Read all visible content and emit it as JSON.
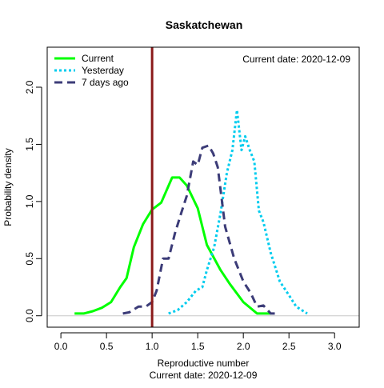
{
  "chart_data": {
    "type": "line",
    "title": "Saskatchewan",
    "xlabel": "Reproductive number",
    "xlabel_sub": "Current date:  2020-12-09",
    "ylabel": "Probability density",
    "annotation": "Current date:  2020-12-09",
    "xlim": [
      -0.15,
      3.27
    ],
    "ylim": [
      -0.1,
      2.35
    ],
    "xticks": [
      "0.0",
      "0.5",
      "1.0",
      "1.5",
      "2.0",
      "2.5",
      "3.0"
    ],
    "yticks": [
      "0.0",
      "0.5",
      "1.0",
      "1.5",
      "2.0"
    ],
    "reference_line_x": 1.0,
    "reference_line_color": "#8b1a1a",
    "baseline_color": "#c8c8c8",
    "legend_position": "top-left",
    "series": [
      {
        "name": "Current",
        "color": "#00ff00",
        "dash": "solid",
        "points": [
          [
            0.15,
            0.02
          ],
          [
            0.25,
            0.02
          ],
          [
            0.35,
            0.04
          ],
          [
            0.45,
            0.07
          ],
          [
            0.55,
            0.12
          ],
          [
            0.65,
            0.25
          ],
          [
            0.72,
            0.33
          ],
          [
            0.8,
            0.6
          ],
          [
            0.9,
            0.8
          ],
          [
            1.0,
            0.93
          ],
          [
            1.1,
            0.99
          ],
          [
            1.22,
            1.21
          ],
          [
            1.3,
            1.21
          ],
          [
            1.38,
            1.14
          ],
          [
            1.5,
            0.94
          ],
          [
            1.6,
            0.62
          ],
          [
            1.75,
            0.4
          ],
          [
            1.85,
            0.28
          ],
          [
            2.0,
            0.12
          ],
          [
            2.15,
            0.02
          ],
          [
            2.3,
            0.02
          ]
        ]
      },
      {
        "name": "Yesterday",
        "color": "#00ccee",
        "dash": "dotted",
        "points": [
          [
            1.18,
            0.02
          ],
          [
            1.28,
            0.05
          ],
          [
            1.38,
            0.12
          ],
          [
            1.48,
            0.22
          ],
          [
            1.55,
            0.25
          ],
          [
            1.6,
            0.4
          ],
          [
            1.68,
            0.6
          ],
          [
            1.75,
            0.9
          ],
          [
            1.82,
            1.25
          ],
          [
            1.88,
            1.45
          ],
          [
            1.93,
            1.8
          ],
          [
            1.98,
            1.45
          ],
          [
            2.02,
            1.57
          ],
          [
            2.07,
            1.45
          ],
          [
            2.12,
            1.35
          ],
          [
            2.17,
            0.92
          ],
          [
            2.22,
            0.82
          ],
          [
            2.3,
            0.55
          ],
          [
            2.4,
            0.3
          ],
          [
            2.5,
            0.18
          ],
          [
            2.58,
            0.08
          ],
          [
            2.7,
            0.02
          ]
        ]
      },
      {
        "name": "7 days ago",
        "color": "#3c3c78",
        "dash": "dashed",
        "points": [
          [
            0.68,
            0.02
          ],
          [
            0.75,
            0.03
          ],
          [
            0.85,
            0.08
          ],
          [
            0.93,
            0.08
          ],
          [
            1.0,
            0.12
          ],
          [
            1.05,
            0.22
          ],
          [
            1.12,
            0.5
          ],
          [
            1.18,
            0.5
          ],
          [
            1.25,
            0.72
          ],
          [
            1.32,
            0.9
          ],
          [
            1.38,
            1.05
          ],
          [
            1.45,
            1.35
          ],
          [
            1.5,
            1.32
          ],
          [
            1.55,
            1.47
          ],
          [
            1.62,
            1.49
          ],
          [
            1.67,
            1.42
          ],
          [
            1.72,
            1.3
          ],
          [
            1.8,
            0.78
          ],
          [
            1.9,
            0.5
          ],
          [
            2.0,
            0.3
          ],
          [
            2.08,
            0.2
          ],
          [
            2.15,
            0.08
          ],
          [
            2.22,
            0.09
          ],
          [
            2.3,
            0.02
          ],
          [
            2.38,
            0.02
          ]
        ]
      }
    ]
  }
}
